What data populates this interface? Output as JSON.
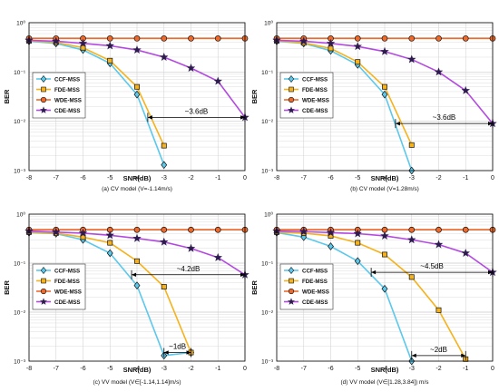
{
  "style": {
    "series_colors": {
      "CCF-MSS": "#5bc8ec",
      "FDE-MSS": "#f5b21c",
      "WDE-MSS": "#ef6a2a",
      "CDE-MSS": "#b34ae0"
    },
    "marker_edge": "#111111",
    "grid_color": "#d4d4d4",
    "annotation_color": "#000000"
  },
  "chart_data": [
    {
      "type": "line",
      "caption": "(a) CV model (V=-1.14m/s)",
      "xlabel": "SNR(dB)",
      "ylabel": "BER",
      "xlim": [
        -8,
        0
      ],
      "ylim": [
        0.001,
        1
      ],
      "yscale": "log",
      "xticks": [
        "-8",
        "-7",
        "-6",
        "-5",
        "-4",
        "-3",
        "-2",
        "-1",
        "0"
      ],
      "yticks": [
        "10⁻³",
        "10⁻²",
        "10⁻¹",
        "10⁰"
      ],
      "grid": true,
      "legend_position": "middle-left",
      "series": [
        {
          "name": "CCF-MSS",
          "marker": "diamond",
          "x": [
            -8,
            -7,
            -6,
            -5,
            -4,
            -3
          ],
          "y": [
            0.42,
            0.38,
            0.28,
            0.15,
            0.035,
            0.0013
          ]
        },
        {
          "name": "FDE-MSS",
          "marker": "square",
          "x": [
            -8,
            -7,
            -6,
            -5,
            -4,
            -3
          ],
          "y": [
            0.43,
            0.4,
            0.31,
            0.17,
            0.05,
            0.0032
          ]
        },
        {
          "name": "WDE-MSS",
          "marker": "circle",
          "x": [
            -8,
            -7,
            -6,
            -5,
            -4,
            -3,
            -2,
            -1,
            0
          ],
          "y": [
            0.48,
            0.48,
            0.48,
            0.48,
            0.48,
            0.48,
            0.48,
            0.48,
            0.48
          ]
        },
        {
          "name": "CDE-MSS",
          "marker": "star",
          "x": [
            -8,
            -7,
            -6,
            -5,
            -4,
            -3,
            -2,
            -1,
            0
          ],
          "y": [
            0.44,
            0.42,
            0.38,
            0.34,
            0.28,
            0.2,
            0.12,
            0.065,
            0.012
          ]
        }
      ],
      "annotations": [
        {
          "text": "~3.6dB",
          "x1": -3.6,
          "x2": 0,
          "y": 0.012
        }
      ]
    },
    {
      "type": "line",
      "caption": "(b) CV model (V=1.28m/s)",
      "xlabel": "SNR(dB)",
      "ylabel": "BER",
      "xlim": [
        -8,
        0
      ],
      "ylim": [
        0.001,
        1
      ],
      "yscale": "log",
      "xticks": [
        "-8",
        "-7",
        "-6",
        "-5",
        "-4",
        "-3",
        "-2",
        "-1",
        "0"
      ],
      "yticks": [
        "10⁻³",
        "10⁻²",
        "10⁻¹",
        "10⁰"
      ],
      "grid": true,
      "legend_position": "middle-left",
      "series": [
        {
          "name": "CCF-MSS",
          "marker": "diamond",
          "x": [
            -8,
            -7,
            -6,
            -5,
            -4,
            -3
          ],
          "y": [
            0.42,
            0.38,
            0.27,
            0.14,
            0.035,
            0.001
          ]
        },
        {
          "name": "FDE-MSS",
          "marker": "square",
          "x": [
            -8,
            -7,
            -6,
            -5,
            -4,
            -3
          ],
          "y": [
            0.43,
            0.39,
            0.3,
            0.16,
            0.05,
            0.0033
          ]
        },
        {
          "name": "WDE-MSS",
          "marker": "circle",
          "x": [
            -8,
            -7,
            -6,
            -5,
            -4,
            -3,
            -2,
            -1,
            0
          ],
          "y": [
            0.48,
            0.48,
            0.48,
            0.48,
            0.48,
            0.48,
            0.48,
            0.48,
            0.48
          ]
        },
        {
          "name": "CDE-MSS",
          "marker": "star",
          "x": [
            -8,
            -7,
            -6,
            -5,
            -4,
            -3,
            -2,
            -1,
            0
          ],
          "y": [
            0.44,
            0.42,
            0.38,
            0.33,
            0.26,
            0.18,
            0.1,
            0.042,
            0.009
          ]
        }
      ],
      "annotations": [
        {
          "text": "~3.6dB",
          "x1": -3.6,
          "x2": 0,
          "y": 0.009
        }
      ]
    },
    {
      "type": "line",
      "caption": "(c) VV model (V∈[-1.14,1.14]m/s)",
      "xlabel": "SNR(dB)",
      "ylabel": "BER",
      "xlim": [
        -8,
        0
      ],
      "ylim": [
        0.001,
        1
      ],
      "yscale": "log",
      "xticks": [
        "-8",
        "-7",
        "-6",
        "-5",
        "-4",
        "-3",
        "-2",
        "-1",
        "0"
      ],
      "yticks": [
        "10⁻³",
        "10⁻²",
        "10⁻¹",
        "10⁰"
      ],
      "grid": true,
      "legend_position": "middle-left",
      "series": [
        {
          "name": "CCF-MSS",
          "marker": "diamond",
          "x": [
            -8,
            -7,
            -6,
            -5,
            -4,
            -3,
            -2
          ],
          "y": [
            0.42,
            0.4,
            0.3,
            0.16,
            0.035,
            0.0013,
            0.0015
          ]
        },
        {
          "name": "FDE-MSS",
          "marker": "square",
          "x": [
            -8,
            -7,
            -6,
            -5,
            -4,
            -3,
            -2
          ],
          "y": [
            0.43,
            0.41,
            0.34,
            0.26,
            0.11,
            0.033,
            0.0015
          ]
        },
        {
          "name": "WDE-MSS",
          "marker": "circle",
          "x": [
            -8,
            -7,
            -6,
            -5,
            -4,
            -3,
            -2,
            -1,
            0
          ],
          "y": [
            0.48,
            0.48,
            0.48,
            0.48,
            0.48,
            0.48,
            0.48,
            0.48,
            0.48
          ]
        },
        {
          "name": "CDE-MSS",
          "marker": "star",
          "x": [
            -8,
            -7,
            -6,
            -5,
            -4,
            -3,
            -2,
            -1,
            0
          ],
          "y": [
            0.45,
            0.43,
            0.41,
            0.37,
            0.32,
            0.27,
            0.2,
            0.13,
            0.058
          ]
        }
      ],
      "annotations": [
        {
          "text": "~4.2dB",
          "x1": -4.2,
          "x2": 0,
          "y": 0.058
        },
        {
          "text": "~1dB",
          "x1": -3,
          "x2": -2,
          "y": 0.0015
        }
      ]
    },
    {
      "type": "line",
      "caption": "(d) VV model (V∈[1.28,3.84]) m/s",
      "xlabel": "SNR(dB)",
      "ylabel": "BER",
      "xlim": [
        -8,
        0
      ],
      "ylim": [
        0.001,
        1
      ],
      "yscale": "log",
      "xticks": [
        "-8",
        "-7",
        "-6",
        "-5",
        "-4",
        "-3",
        "-2",
        "-1",
        "0"
      ],
      "yticks": [
        "10⁻³",
        "10⁻²",
        "10⁻¹",
        "10⁰"
      ],
      "grid": true,
      "legend_position": "middle-left",
      "series": [
        {
          "name": "CCF-MSS",
          "marker": "diamond",
          "x": [
            -8,
            -7,
            -6,
            -5,
            -4,
            -3
          ],
          "y": [
            0.42,
            0.34,
            0.22,
            0.11,
            0.03,
            0.001
          ]
        },
        {
          "name": "FDE-MSS",
          "marker": "square",
          "x": [
            -8,
            -7,
            -6,
            -5,
            -4,
            -3,
            -2,
            -1
          ],
          "y": [
            0.43,
            0.41,
            0.36,
            0.26,
            0.15,
            0.052,
            0.011,
            0.0011
          ]
        },
        {
          "name": "WDE-MSS",
          "marker": "circle",
          "x": [
            -8,
            -7,
            -6,
            -5,
            -4,
            -3,
            -2,
            -1,
            0
          ],
          "y": [
            0.48,
            0.48,
            0.48,
            0.48,
            0.48,
            0.48,
            0.48,
            0.48,
            0.48
          ]
        },
        {
          "name": "CDE-MSS",
          "marker": "star",
          "x": [
            -8,
            -7,
            -6,
            -5,
            -4,
            -3,
            -2,
            -1,
            0
          ],
          "y": [
            0.45,
            0.44,
            0.42,
            0.4,
            0.36,
            0.3,
            0.24,
            0.16,
            0.065
          ]
        }
      ],
      "annotations": [
        {
          "text": "~4.5dB",
          "x1": -4.5,
          "x2": 0,
          "y": 0.065
        },
        {
          "text": "~2dB",
          "x1": -3,
          "x2": -1,
          "y": 0.0013
        }
      ]
    }
  ]
}
